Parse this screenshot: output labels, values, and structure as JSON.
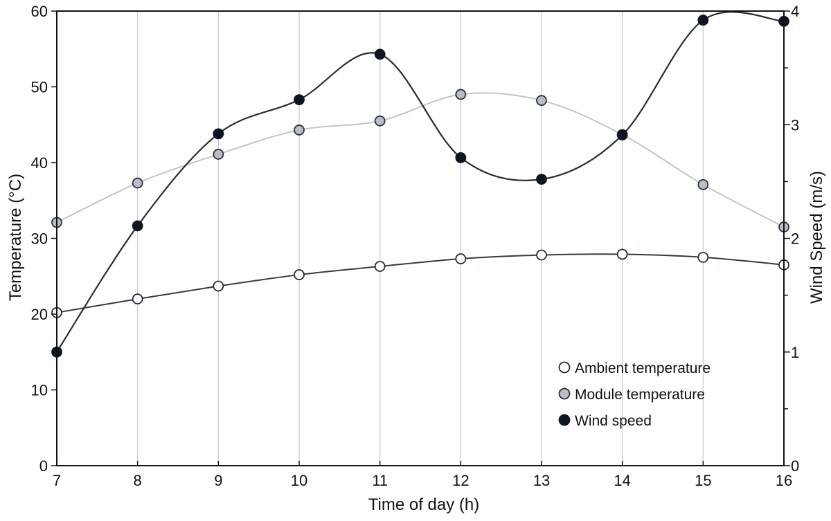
{
  "chart_data": {
    "type": "line",
    "xlabel": "Time of day (h)",
    "ylabel": "Temperature (°C)",
    "y2label": "Wind Speed (m/s)",
    "x": [
      7,
      8,
      9,
      10,
      11,
      12,
      13,
      14,
      15,
      16
    ],
    "xlim": [
      7,
      16
    ],
    "ylim": [
      0,
      60
    ],
    "y2lim": [
      0,
      4
    ],
    "xticks": [
      "7",
      "8",
      "9",
      "10",
      "11",
      "12",
      "13",
      "14",
      "15",
      "16"
    ],
    "yticks": [
      "0",
      "10",
      "20",
      "30",
      "40",
      "50",
      "60"
    ],
    "y2ticks": [
      "0",
      "1",
      "2",
      "3",
      "4"
    ],
    "grid": "vertical",
    "legend_position": "bottom-right",
    "series": [
      {
        "name": "Ambient temperature",
        "axis": "left",
        "values": [
          20.2,
          22.0,
          23.7,
          25.2,
          26.3,
          27.3,
          27.8,
          27.9,
          27.5,
          26.5
        ],
        "line_color": "#3a3a3a",
        "marker_fill": "#ffffff",
        "marker_stroke": "#222b3a"
      },
      {
        "name": "Module temperature",
        "axis": "left",
        "values": [
          32.1,
          37.3,
          41.1,
          44.3,
          45.5,
          49.0,
          48.2,
          43.7,
          37.1,
          31.5
        ],
        "line_color": "#c4c4c4",
        "marker_fill": "#b9bec4",
        "marker_stroke": "#2a3140"
      },
      {
        "name": "Wind speed",
        "axis": "right",
        "values": [
          1.0,
          2.11,
          2.92,
          3.22,
          3.62,
          2.71,
          2.52,
          2.91,
          3.92,
          3.91
        ],
        "line_color": "#2b2b2b",
        "marker_fill": "#0e1421",
        "marker_stroke": "#0e1421"
      }
    ]
  }
}
